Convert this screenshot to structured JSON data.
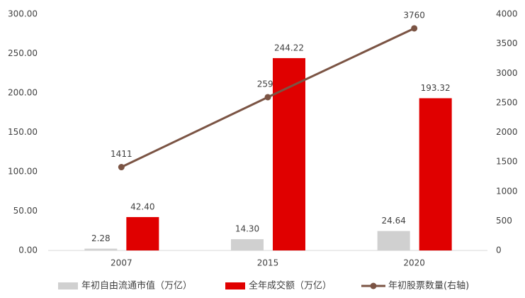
{
  "chart_data": {
    "type": "bar",
    "categories": [
      "2007",
      "2015",
      "2020"
    ],
    "series": [
      {
        "name": "年初自由流通市值（万亿）",
        "type": "bar",
        "color": "#d0d0d0",
        "values": [
          2.28,
          14.3,
          24.64
        ],
        "value_labels": [
          "2.28",
          "14.30",
          "24.64"
        ]
      },
      {
        "name": "全年成交额（万亿）",
        "type": "bar",
        "color": "#e00000",
        "values": [
          42.4,
          244.22,
          193.32
        ],
        "value_labels": [
          "42.40",
          "244.22",
          "193.32"
        ]
      },
      {
        "name": "年初股票数量(右轴)",
        "type": "line",
        "axis": "y2",
        "color": "#7b5444",
        "values": [
          1411,
          2595,
          3760
        ]
      }
    ],
    "ylim": [
      0,
      300
    ],
    "yticks": [
      {
        "value": 0,
        "label": "0.00"
      },
      {
        "value": 50,
        "label": "50.00"
      },
      {
        "value": 100,
        "label": "100.00"
      },
      {
        "value": 150,
        "label": "150.00"
      },
      {
        "value": 200,
        "label": "200.00"
      },
      {
        "value": 250,
        "label": "250.00"
      },
      {
        "value": 300,
        "label": "300.00"
      }
    ],
    "y2lim": [
      0,
      4000
    ],
    "y2ticks": [
      0,
      500,
      1000,
      1500,
      2000,
      2500,
      3000,
      3500,
      4000
    ],
    "grid": false
  }
}
